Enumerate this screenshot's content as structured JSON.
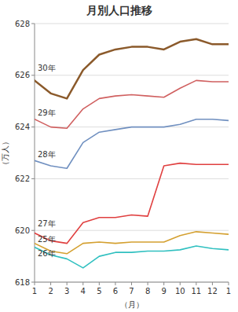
{
  "chart_data": {
    "type": "line",
    "title": "月別人口推移",
    "x_label": "（月）",
    "y_label": "（万人）",
    "categories": [
      1,
      2,
      3,
      4,
      5,
      6,
      7,
      8,
      9,
      10,
      11,
      12,
      1
    ],
    "ylim": [
      618,
      628
    ],
    "yticks": [
      618,
      620,
      622,
      624,
      626,
      628
    ],
    "grid": true,
    "series": [
      {
        "name": "26年",
        "color": "#30C0C0",
        "values": [
          619.35,
          619.05,
          618.9,
          618.55,
          619.0,
          619.15,
          619.15,
          619.2,
          619.2,
          619.25,
          619.4,
          619.3,
          619.25
        ]
      },
      {
        "name": "25年",
        "color": "#D4A030",
        "values": [
          619.5,
          619.2,
          619.1,
          619.5,
          619.55,
          619.5,
          619.55,
          619.55,
          619.55,
          619.8,
          619.95,
          619.9,
          619.85
        ]
      },
      {
        "name": "27年",
        "color": "#E04040",
        "values": [
          619.9,
          619.6,
          619.5,
          620.3,
          620.5,
          620.5,
          620.6,
          620.55,
          622.5,
          622.6,
          622.55,
          622.55,
          622.55
        ]
      },
      {
        "name": "28年",
        "color": "#7090C0",
        "values": [
          622.7,
          622.5,
          622.4,
          623.4,
          623.8,
          623.9,
          624.0,
          624.0,
          624.0,
          624.1,
          624.3,
          624.3,
          624.25
        ]
      },
      {
        "name": "29年",
        "color": "#D06060",
        "values": [
          624.3,
          624.0,
          623.95,
          624.7,
          625.1,
          625.2,
          625.25,
          625.2,
          625.15,
          625.5,
          625.8,
          625.75,
          625.75
        ]
      },
      {
        "name": "30年",
        "color": "#8B5A2B",
        "values": [
          625.8,
          625.3,
          625.1,
          626.2,
          626.8,
          627.0,
          627.1,
          627.1,
          627.0,
          627.3,
          627.4,
          627.2,
          627.2
        ]
      }
    ],
    "annotations": [
      {
        "text": "30年",
        "y": 626.28
      },
      {
        "text": "29年",
        "y": 624.55
      },
      {
        "text": "28年",
        "y": 622.95
      },
      {
        "text": "27年",
        "y": 620.25
      },
      {
        "text": "25年",
        "y": 619.65
      },
      {
        "text": "26年",
        "y": 619.1
      }
    ]
  }
}
